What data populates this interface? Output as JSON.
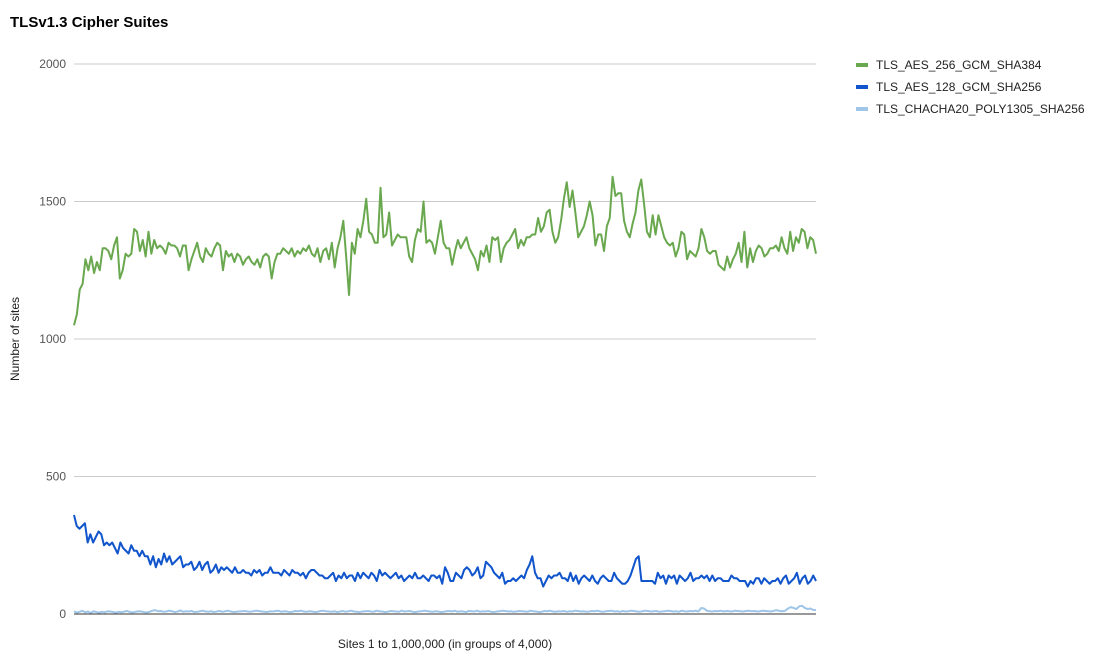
{
  "chart_data": {
    "type": "line",
    "title": "TLSv1.3 Cipher Suites",
    "xlabel": "Sites 1 to 1,000,000 (in groups of 4,000)",
    "ylabel": "Number of sites",
    "ylim": [
      0,
      2000
    ],
    "yticks": [
      "0",
      "500",
      "1000",
      "1500",
      "2000"
    ],
    "grid": true,
    "legend_position": "right",
    "series": [
      {
        "name": "TLS_AES_256_GCM_SHA384",
        "color": "#6aa84f",
        "values": [
          1050,
          1090,
          1180,
          1200,
          1290,
          1250,
          1300,
          1240,
          1280,
          1250,
          1330,
          1330,
          1320,
          1290,
          1340,
          1370,
          1220,
          1250,
          1310,
          1300,
          1310,
          1400,
          1390,
          1320,
          1360,
          1300,
          1390,
          1310,
          1360,
          1330,
          1340,
          1330,
          1310,
          1350,
          1340,
          1340,
          1330,
          1300,
          1340,
          1340,
          1250,
          1290,
          1320,
          1350,
          1300,
          1280,
          1330,
          1310,
          1300,
          1330,
          1350,
          1340,
          1250,
          1320,
          1300,
          1310,
          1280,
          1310,
          1300,
          1270,
          1290,
          1300,
          1280,
          1270,
          1290,
          1260,
          1300,
          1310,
          1300,
          1220,
          1280,
          1310,
          1310,
          1330,
          1320,
          1310,
          1330,
          1300,
          1320,
          1310,
          1330,
          1320,
          1340,
          1310,
          1300,
          1330,
          1280,
          1320,
          1330,
          1290,
          1350,
          1260,
          1330,
          1370,
          1430,
          1300,
          1160,
          1350,
          1310,
          1400,
          1370,
          1430,
          1510,
          1390,
          1380,
          1350,
          1350,
          1550,
          1370,
          1380,
          1460,
          1340,
          1360,
          1380,
          1370,
          1370,
          1370,
          1300,
          1280,
          1360,
          1400,
          1390,
          1500,
          1350,
          1360,
          1350,
          1310,
          1370,
          1430,
          1350,
          1330,
          1330,
          1270,
          1320,
          1360,
          1330,
          1350,
          1370,
          1330,
          1310,
          1290,
          1250,
          1320,
          1300,
          1340,
          1280,
          1370,
          1360,
          1370,
          1280,
          1330,
          1350,
          1360,
          1380,
          1400,
          1330,
          1360,
          1340,
          1370,
          1370,
          1380,
          1380,
          1440,
          1390,
          1410,
          1460,
          1470,
          1390,
          1350,
          1370,
          1430,
          1510,
          1570,
          1480,
          1540,
          1460,
          1370,
          1390,
          1410,
          1450,
          1500,
          1450,
          1340,
          1380,
          1380,
          1320,
          1410,
          1440,
          1590,
          1520,
          1530,
          1530,
          1430,
          1390,
          1370,
          1420,
          1460,
          1540,
          1580,
          1490,
          1390,
          1370,
          1450,
          1380,
          1450,
          1410,
          1370,
          1350,
          1340,
          1350,
          1300,
          1330,
          1390,
          1380,
          1290,
          1320,
          1310,
          1300,
          1330,
          1400,
          1370,
          1320,
          1310,
          1320,
          1320,
          1270,
          1260,
          1250,
          1300,
          1260,
          1290,
          1310,
          1350,
          1280,
          1390,
          1260,
          1330,
          1280,
          1320,
          1340,
          1330,
          1300,
          1310,
          1330,
          1330,
          1340,
          1320,
          1370,
          1330,
          1310,
          1390,
          1320,
          1370,
          1350,
          1400,
          1390,
          1330,
          1370,
          1360,
          1310
        ]
      },
      {
        "name": "TLS_AES_128_GCM_SHA256",
        "color": "#1155cc",
        "values": [
          360,
          320,
          310,
          320,
          330,
          260,
          290,
          260,
          280,
          300,
          290,
          250,
          260,
          250,
          260,
          240,
          220,
          260,
          240,
          230,
          220,
          250,
          230,
          230,
          210,
          230,
          210,
          210,
          180,
          210,
          170,
          200,
          180,
          220,
          190,
          210,
          180,
          190,
          200,
          210,
          170,
          180,
          180,
          190,
          160,
          170,
          190,
          160,
          180,
          190,
          150,
          160,
          180,
          150,
          170,
          160,
          170,
          160,
          150,
          170,
          150,
          150,
          160,
          150,
          150,
          140,
          160,
          150,
          160,
          140,
          150,
          150,
          170,
          150,
          150,
          150,
          140,
          160,
          150,
          140,
          160,
          150,
          150,
          140,
          150,
          130,
          150,
          160,
          160,
          150,
          140,
          140,
          130,
          130,
          140,
          150,
          120,
          140,
          130,
          150,
          130,
          140,
          140,
          120,
          150,
          130,
          150,
          140,
          130,
          150,
          140,
          120,
          160,
          140,
          150,
          140,
          130,
          140,
          150,
          130,
          140,
          120,
          130,
          140,
          130,
          150,
          130,
          130,
          140,
          130,
          120,
          140,
          140,
          130,
          140,
          110,
          170,
          150,
          120,
          120,
          150,
          140,
          130,
          160,
          170,
          160,
          140,
          150,
          170,
          130,
          140,
          190,
          180,
          170,
          150,
          140,
          130,
          150,
          110,
          120,
          120,
          130,
          120,
          130,
          140,
          130,
          160,
          180,
          210,
          150,
          130,
          130,
          100,
          120,
          140,
          130,
          140,
          140,
          150,
          130,
          130,
          120,
          150,
          120,
          140,
          110,
          130,
          140,
          130,
          120,
          140,
          120,
          110,
          130,
          140,
          130,
          120,
          120,
          150,
          130,
          120,
          110,
          110,
          120,
          140,
          170,
          200,
          210,
          120,
          120,
          120,
          120,
          120,
          110,
          150,
          130,
          140,
          110,
          140,
          130,
          140,
          110,
          140,
          130,
          120,
          130,
          150,
          120,
          130,
          130,
          140,
          130,
          140,
          120,
          140,
          120,
          130,
          130,
          120,
          120,
          120,
          140,
          130,
          130,
          120,
          120,
          120,
          100,
          120,
          110,
          130,
          130,
          110,
          130,
          120,
          110,
          120,
          120,
          130,
          110,
          130,
          140,
          110,
          120,
          130,
          150,
          110,
          130,
          140,
          110,
          120,
          140,
          120
        ]
      },
      {
        "name": "TLS_CHACHA20_POLY1305_SHA256",
        "color": "#9fc5e8",
        "values": [
          10,
          5,
          8,
          12,
          6,
          9,
          4,
          10,
          7,
          5,
          8,
          6,
          10,
          9,
          7,
          5,
          8,
          6,
          9,
          11,
          7,
          6,
          8,
          10,
          9,
          7,
          6,
          8,
          12,
          14,
          10,
          11,
          8,
          9,
          12,
          10,
          7,
          9,
          13,
          8,
          10,
          9,
          11,
          7,
          8,
          10,
          12,
          9,
          8,
          10,
          7,
          9,
          11,
          8,
          10,
          12,
          9,
          7,
          8,
          9,
          10,
          11,
          9,
          8,
          10,
          12,
          11,
          9,
          8,
          7,
          10,
          9,
          11,
          12,
          8,
          10,
          9,
          7,
          8,
          11,
          10,
          12,
          9,
          8,
          10,
          9,
          7,
          8,
          11,
          12,
          10,
          9,
          8,
          10,
          7,
          9,
          11,
          8,
          10,
          12,
          9,
          8,
          7,
          9,
          10,
          11,
          9,
          8,
          12,
          10,
          9,
          7,
          8,
          11,
          10,
          9,
          8,
          12,
          9,
          10,
          11,
          8,
          7,
          9,
          10,
          12,
          11,
          9,
          8,
          10,
          9,
          7,
          8,
          10,
          11,
          9,
          12,
          8,
          10,
          9,
          7,
          11,
          10,
          9,
          12,
          8,
          10,
          9,
          11,
          8,
          7,
          9,
          10,
          12,
          11,
          9,
          10,
          8,
          9,
          11,
          10,
          9,
          8,
          12,
          10,
          9,
          7,
          8,
          11,
          10,
          12,
          9,
          8,
          10,
          9,
          11,
          8,
          10,
          9,
          12,
          11,
          9,
          10,
          8,
          9,
          11,
          10,
          12,
          9,
          8,
          10,
          11,
          12,
          9,
          10,
          8,
          11,
          9,
          10,
          12,
          11,
          9,
          8,
          10,
          12,
          11,
          9,
          10,
          11,
          8,
          9,
          10,
          12,
          11,
          9,
          10,
          8,
          12,
          10,
          9,
          11,
          10,
          12,
          9,
          22,
          20,
          12,
          10,
          9,
          11,
          10,
          12,
          9,
          11,
          10,
          9,
          12,
          11,
          10,
          9,
          11,
          12,
          10,
          11,
          9,
          10,
          12,
          11,
          10,
          9,
          12,
          14,
          11,
          10,
          12,
          20,
          25,
          22,
          18,
          28,
          30,
          22,
          18,
          20,
          15,
          14
        ]
      }
    ]
  }
}
